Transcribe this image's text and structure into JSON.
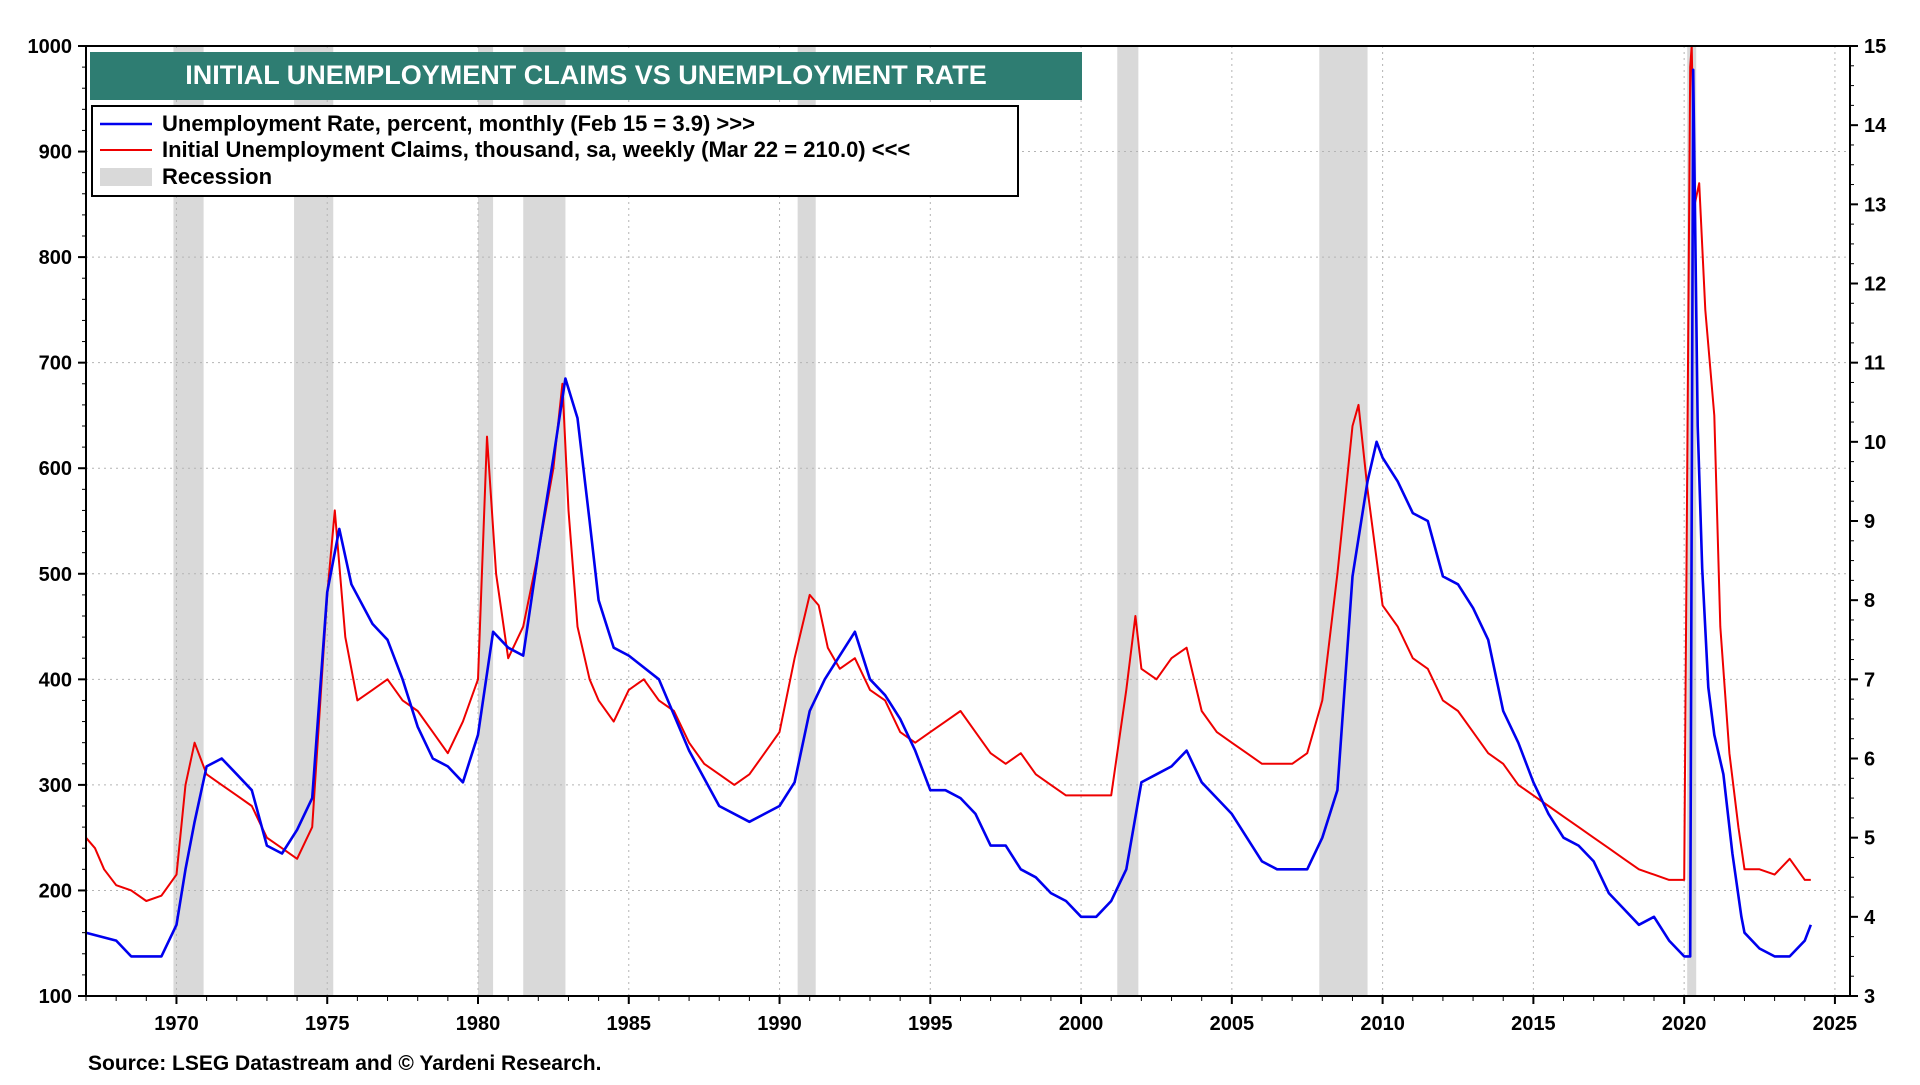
{
  "chart_data": {
    "type": "line",
    "title": "INITIAL UNEMPLOYMENT CLAIMS VS UNEMPLOYMENT RATE",
    "source": "Source: LSEG Datastream and © Yardeni Research.",
    "x_ticks": [
      "1970",
      "1975",
      "1980",
      "1985",
      "1990",
      "1995",
      "2000",
      "2005",
      "2010",
      "2015",
      "2020",
      "2025"
    ],
    "xlim": [
      1967.0,
      2025.5
    ],
    "left_axis": {
      "ylim": [
        100,
        1000
      ],
      "ticks": [
        "100",
        "200",
        "300",
        "400",
        "500",
        "600",
        "700",
        "800",
        "900",
        "1000"
      ]
    },
    "right_axis": {
      "ylim": [
        3,
        15
      ],
      "ticks": [
        "3",
        "4",
        "5",
        "6",
        "7",
        "8",
        "9",
        "10",
        "11",
        "12",
        "13",
        "14",
        "15"
      ]
    },
    "grid": true,
    "legend": {
      "placement": "top-left",
      "items": [
        {
          "label": "Unemployment Rate, percent, monthly (Feb 15 = 3.9) >>>",
          "color": "#0000ee"
        },
        {
          "label": "Initial Unemployment Claims, thousand, sa, weekly (Mar 22 = 210.0) <<<",
          "color": "#ee0000"
        },
        {
          "label": "Recession",
          "color": "#d9d9d9"
        }
      ]
    },
    "colors": {
      "title_bg": "#2e7d72",
      "title_text": "#ffffff",
      "unemployment": "#0000ee",
      "claims": "#ee0000",
      "recession": "#d9d9d9"
    },
    "recessions": [
      [
        1969.9,
        1970.9
      ],
      [
        1973.9,
        1975.2
      ],
      [
        1980.0,
        1980.5
      ],
      [
        1981.5,
        1982.9
      ],
      [
        1990.6,
        1991.2
      ],
      [
        2001.2,
        2001.9
      ],
      [
        2007.9,
        2009.5
      ],
      [
        2020.1,
        2020.4
      ]
    ],
    "series": [
      {
        "name": "Unemployment Rate, percent, monthly (Feb 15 = 3.9) >>>",
        "axis": "right",
        "x": [
          1967.0,
          1968.0,
          1968.5,
          1969.0,
          1969.5,
          1970.0,
          1970.3,
          1970.6,
          1971.0,
          1971.5,
          1972.0,
          1972.5,
          1973.0,
          1973.5,
          1974.0,
          1974.5,
          1975.0,
          1975.4,
          1975.8,
          1976.5,
          1977.0,
          1977.5,
          1978.0,
          1978.5,
          1979.0,
          1979.5,
          1980.0,
          1980.5,
          1981.0,
          1981.5,
          1982.0,
          1982.5,
          1982.9,
          1983.3,
          1983.7,
          1984.0,
          1984.5,
          1985.0,
          1986.0,
          1987.0,
          1988.0,
          1989.0,
          1989.5,
          1990.0,
          1990.5,
          1991.0,
          1991.5,
          1992.0,
          1992.5,
          1993.0,
          1993.5,
          1994.0,
          1994.5,
          1995.0,
          1995.5,
          1996.0,
          1996.5,
          1997.0,
          1997.5,
          1998.0,
          1998.5,
          1999.0,
          1999.5,
          2000.0,
          2000.5,
          2001.0,
          2001.5,
          2002.0,
          2002.5,
          2003.0,
          2003.5,
          2004.0,
          2004.5,
          2005.0,
          2005.5,
          2006.0,
          2006.5,
          2007.0,
          2007.5,
          2008.0,
          2008.5,
          2009.0,
          2009.5,
          2009.8,
          2010.0,
          2010.5,
          2011.0,
          2011.5,
          2012.0,
          2012.5,
          2013.0,
          2013.5,
          2014.0,
          2014.5,
          2015.0,
          2015.5,
          2016.0,
          2016.5,
          2017.0,
          2017.5,
          2018.0,
          2018.5,
          2019.0,
          2019.5,
          2020.0,
          2020.2,
          2020.3,
          2020.45,
          2020.6,
          2020.8,
          2021.0,
          2021.3,
          2021.6,
          2021.9,
          2022.0,
          2022.5,
          2023.0,
          2023.5,
          2024.0,
          2024.2
        ],
        "values": [
          3.8,
          3.7,
          3.5,
          3.5,
          3.5,
          3.9,
          4.6,
          5.2,
          5.9,
          6.0,
          5.8,
          5.6,
          4.9,
          4.8,
          5.1,
          5.5,
          8.1,
          8.9,
          8.2,
          7.7,
          7.5,
          7.0,
          6.4,
          6.0,
          5.9,
          5.7,
          6.3,
          7.6,
          7.4,
          7.3,
          8.6,
          9.8,
          10.8,
          10.3,
          9.0,
          8.0,
          7.4,
          7.3,
          7.0,
          6.1,
          5.4,
          5.2,
          5.3,
          5.4,
          5.7,
          6.6,
          7.0,
          7.3,
          7.6,
          7.0,
          6.8,
          6.5,
          6.1,
          5.6,
          5.6,
          5.5,
          5.3,
          4.9,
          4.9,
          4.6,
          4.5,
          4.3,
          4.2,
          4.0,
          4.0,
          4.2,
          4.6,
          5.7,
          5.8,
          5.9,
          6.1,
          5.7,
          5.5,
          5.3,
          5.0,
          4.7,
          4.6,
          4.6,
          4.6,
          5.0,
          5.6,
          8.3,
          9.5,
          10.0,
          9.8,
          9.5,
          9.1,
          9.0,
          8.3,
          8.2,
          7.9,
          7.5,
          6.6,
          6.2,
          5.7,
          5.3,
          5.0,
          4.9,
          4.7,
          4.3,
          4.1,
          3.9,
          4.0,
          3.7,
          3.5,
          3.5,
          14.7,
          10.2,
          8.4,
          6.9,
          6.3,
          5.8,
          4.8,
          4.0,
          3.8,
          3.6,
          3.5,
          3.5,
          3.7,
          3.9
        ]
      },
      {
        "name": "Initial Unemployment Claims, thousand, sa, weekly (Mar 22 = 210.0) <<<",
        "axis": "left",
        "x": [
          1967.0,
          1967.3,
          1967.6,
          1968.0,
          1968.5,
          1969.0,
          1969.5,
          1970.0,
          1970.3,
          1970.6,
          1971.0,
          1971.5,
          1972.0,
          1972.5,
          1973.0,
          1973.5,
          1974.0,
          1974.5,
          1975.0,
          1975.25,
          1975.6,
          1976.0,
          1976.5,
          1977.0,
          1977.5,
          1978.0,
          1978.5,
          1979.0,
          1979.5,
          1980.0,
          1980.3,
          1980.6,
          1981.0,
          1981.5,
          1982.0,
          1982.5,
          1982.8,
          1983.0,
          1983.3,
          1983.7,
          1984.0,
          1984.5,
          1985.0,
          1985.5,
          1986.0,
          1986.5,
          1987.0,
          1987.5,
          1988.0,
          1988.5,
          1989.0,
          1989.5,
          1990.0,
          1990.5,
          1991.0,
          1991.3,
          1991.6,
          1992.0,
          1992.5,
          1993.0,
          1993.5,
          1994.0,
          1994.5,
          1995.0,
          1995.5,
          1996.0,
          1996.5,
          1997.0,
          1997.5,
          1998.0,
          1998.5,
          1999.0,
          1999.5,
          2000.0,
          2000.5,
          2001.0,
          2001.5,
          2001.8,
          2002.0,
          2002.5,
          2003.0,
          2003.5,
          2004.0,
          2004.5,
          2005.0,
          2005.5,
          2006.0,
          2006.5,
          2007.0,
          2007.5,
          2008.0,
          2008.5,
          2009.0,
          2009.2,
          2009.5,
          2010.0,
          2010.5,
          2011.0,
          2011.5,
          2012.0,
          2012.5,
          2013.0,
          2013.5,
          2014.0,
          2014.5,
          2015.0,
          2015.5,
          2016.0,
          2016.5,
          2017.0,
          2017.5,
          2018.0,
          2018.5,
          2019.0,
          2019.5,
          2020.0,
          2020.2,
          2020.25,
          2020.35,
          2020.5,
          2020.7,
          2021.0,
          2021.2,
          2021.5,
          2021.8,
          2022.0,
          2022.5,
          2023.0,
          2023.5,
          2024.0,
          2024.2
        ],
        "values": [
          250,
          240,
          220,
          205,
          200,
          190,
          195,
          215,
          300,
          340,
          310,
          300,
          290,
          280,
          250,
          240,
          230,
          260,
          480,
          560,
          440,
          380,
          390,
          400,
          380,
          370,
          350,
          330,
          360,
          400,
          630,
          500,
          420,
          450,
          520,
          600,
          680,
          560,
          450,
          400,
          380,
          360,
          390,
          400,
          380,
          370,
          340,
          320,
          310,
          300,
          310,
          330,
          350,
          420,
          480,
          470,
          430,
          410,
          420,
          390,
          380,
          350,
          340,
          350,
          360,
          370,
          350,
          330,
          320,
          330,
          310,
          300,
          290,
          290,
          290,
          290,
          390,
          460,
          410,
          400,
          420,
          430,
          370,
          350,
          340,
          330,
          320,
          320,
          320,
          330,
          380,
          500,
          640,
          660,
          580,
          470,
          450,
          420,
          410,
          380,
          370,
          350,
          330,
          320,
          300,
          290,
          280,
          270,
          260,
          250,
          240,
          230,
          220,
          215,
          210,
          210,
          980,
          1000,
          850,
          870,
          750,
          650,
          450,
          330,
          260,
          220,
          220,
          215,
          230,
          210,
          210
        ]
      }
    ]
  }
}
